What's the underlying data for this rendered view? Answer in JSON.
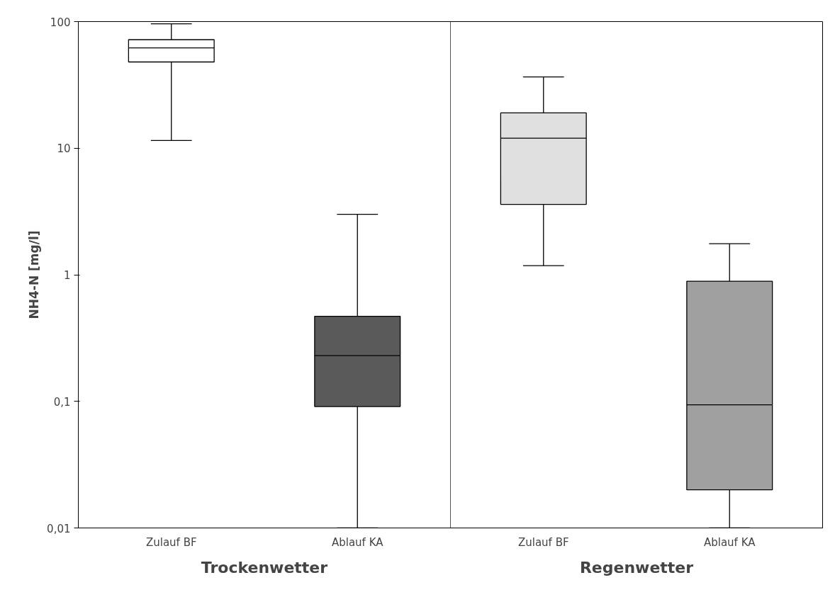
{
  "chart_data": {
    "type": "box",
    "ylabel": "NH4-N [mg/l]",
    "categories": [
      "Zulauf BF",
      "Ablauf KA",
      "Zulauf BF",
      "Ablauf KA"
    ],
    "boxes": [
      {
        "low": 11.5,
        "q1": 48,
        "median": 62,
        "q3": 72,
        "high": 96
      },
      {
        "low": 0.01,
        "q1": 0.091,
        "median": 0.23,
        "q3": 0.47,
        "high": 3.0
      },
      {
        "low": 1.18,
        "q1": 3.6,
        "median": 12,
        "q3": 19,
        "high": 36.6
      },
      {
        "low": 0.01,
        "q1": 0.02,
        "median": 0.094,
        "q3": 0.89,
        "high": 1.76
      }
    ],
    "colors": [
      "#ffffff",
      "#5a5a5a",
      "#e0e0e0",
      "#a0a0a0"
    ],
    "log": true,
    "ylim": [
      0.01,
      100
    ],
    "yticks": [
      {
        "value": 0.01,
        "label": "0,01"
      },
      {
        "value": 0.1,
        "label": "0,1"
      },
      1,
      10,
      100
    ],
    "grid": false,
    "annotations": [
      "Trockenwetter",
      "Regenwetter"
    ]
  }
}
